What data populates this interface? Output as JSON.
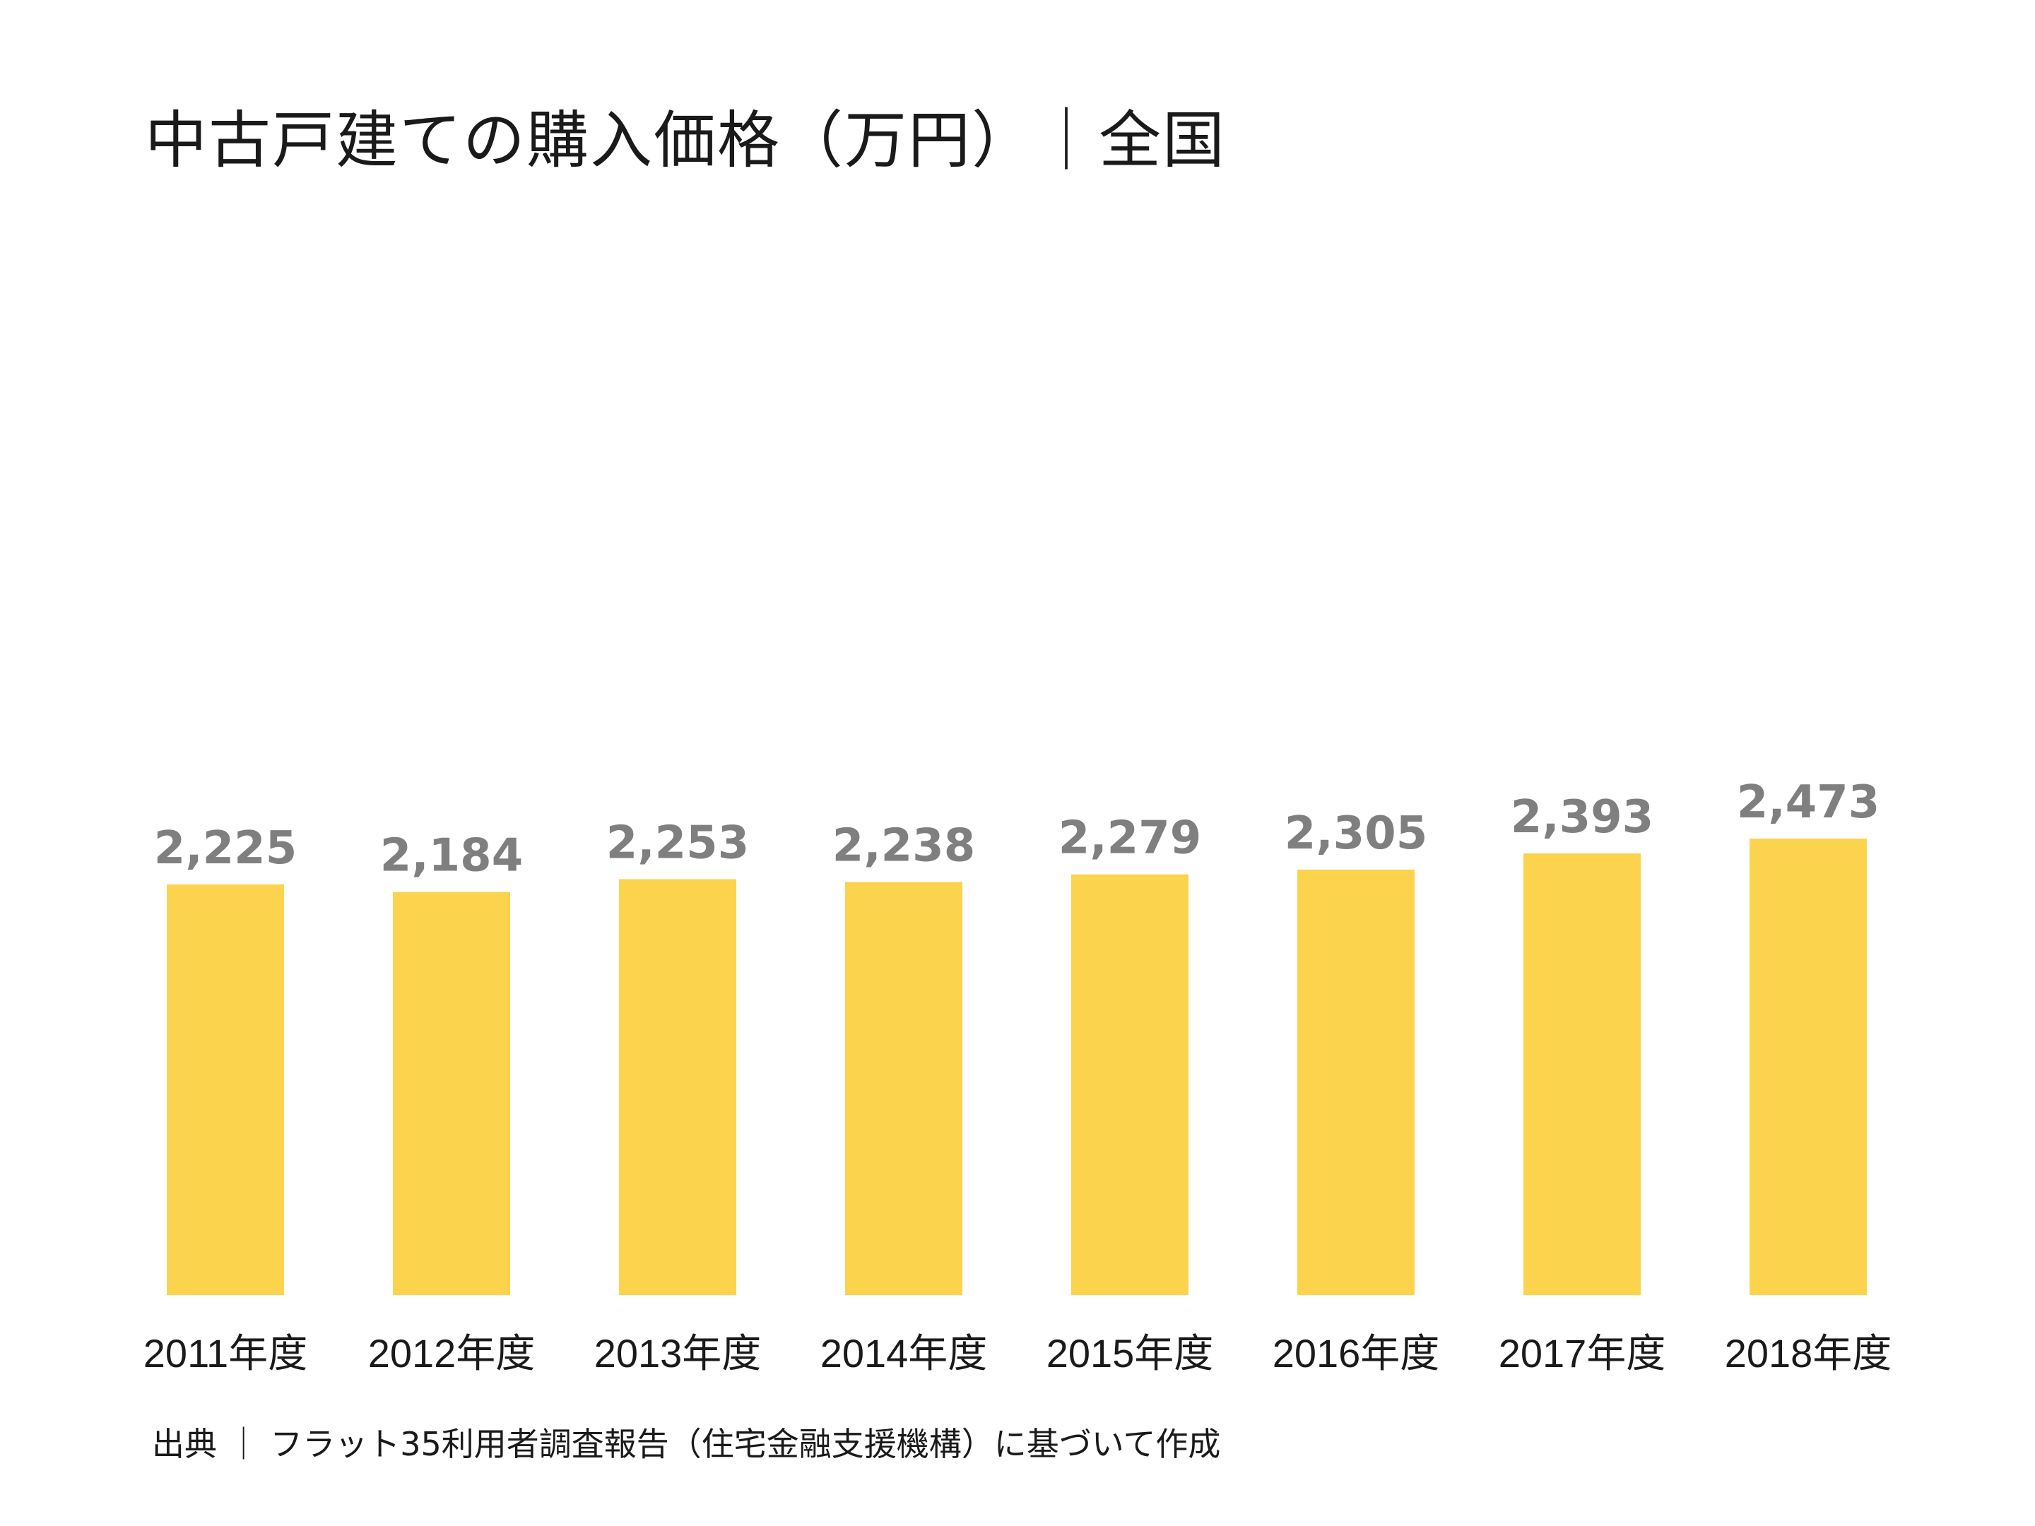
{
  "chart_data": {
    "type": "bar",
    "title": "中古戸建ての購入価格（万円）｜全国",
    "source": "出典 ｜ フラット35利用者調査報告（住宅金融支援機構）に基づいて作成",
    "categories": [
      "2011年度",
      "2012年度",
      "2013年度",
      "2014年度",
      "2015年度",
      "2016年度",
      "2017年度",
      "2018年度"
    ],
    "values": [
      2225,
      2184,
      2253,
      2238,
      2279,
      2305,
      2393,
      2473
    ],
    "value_labels": [
      "2,225",
      "2,184",
      "2,253",
      "2,238",
      "2,279",
      "2,305",
      "2,393",
      "2,473"
    ],
    "ylim": [
      0,
      2473
    ],
    "grid": false,
    "legend": "none",
    "colors": {
      "bar": "#fcd34d",
      "value_label": "#7f7f7f",
      "text": "#1a1a1a"
    }
  }
}
